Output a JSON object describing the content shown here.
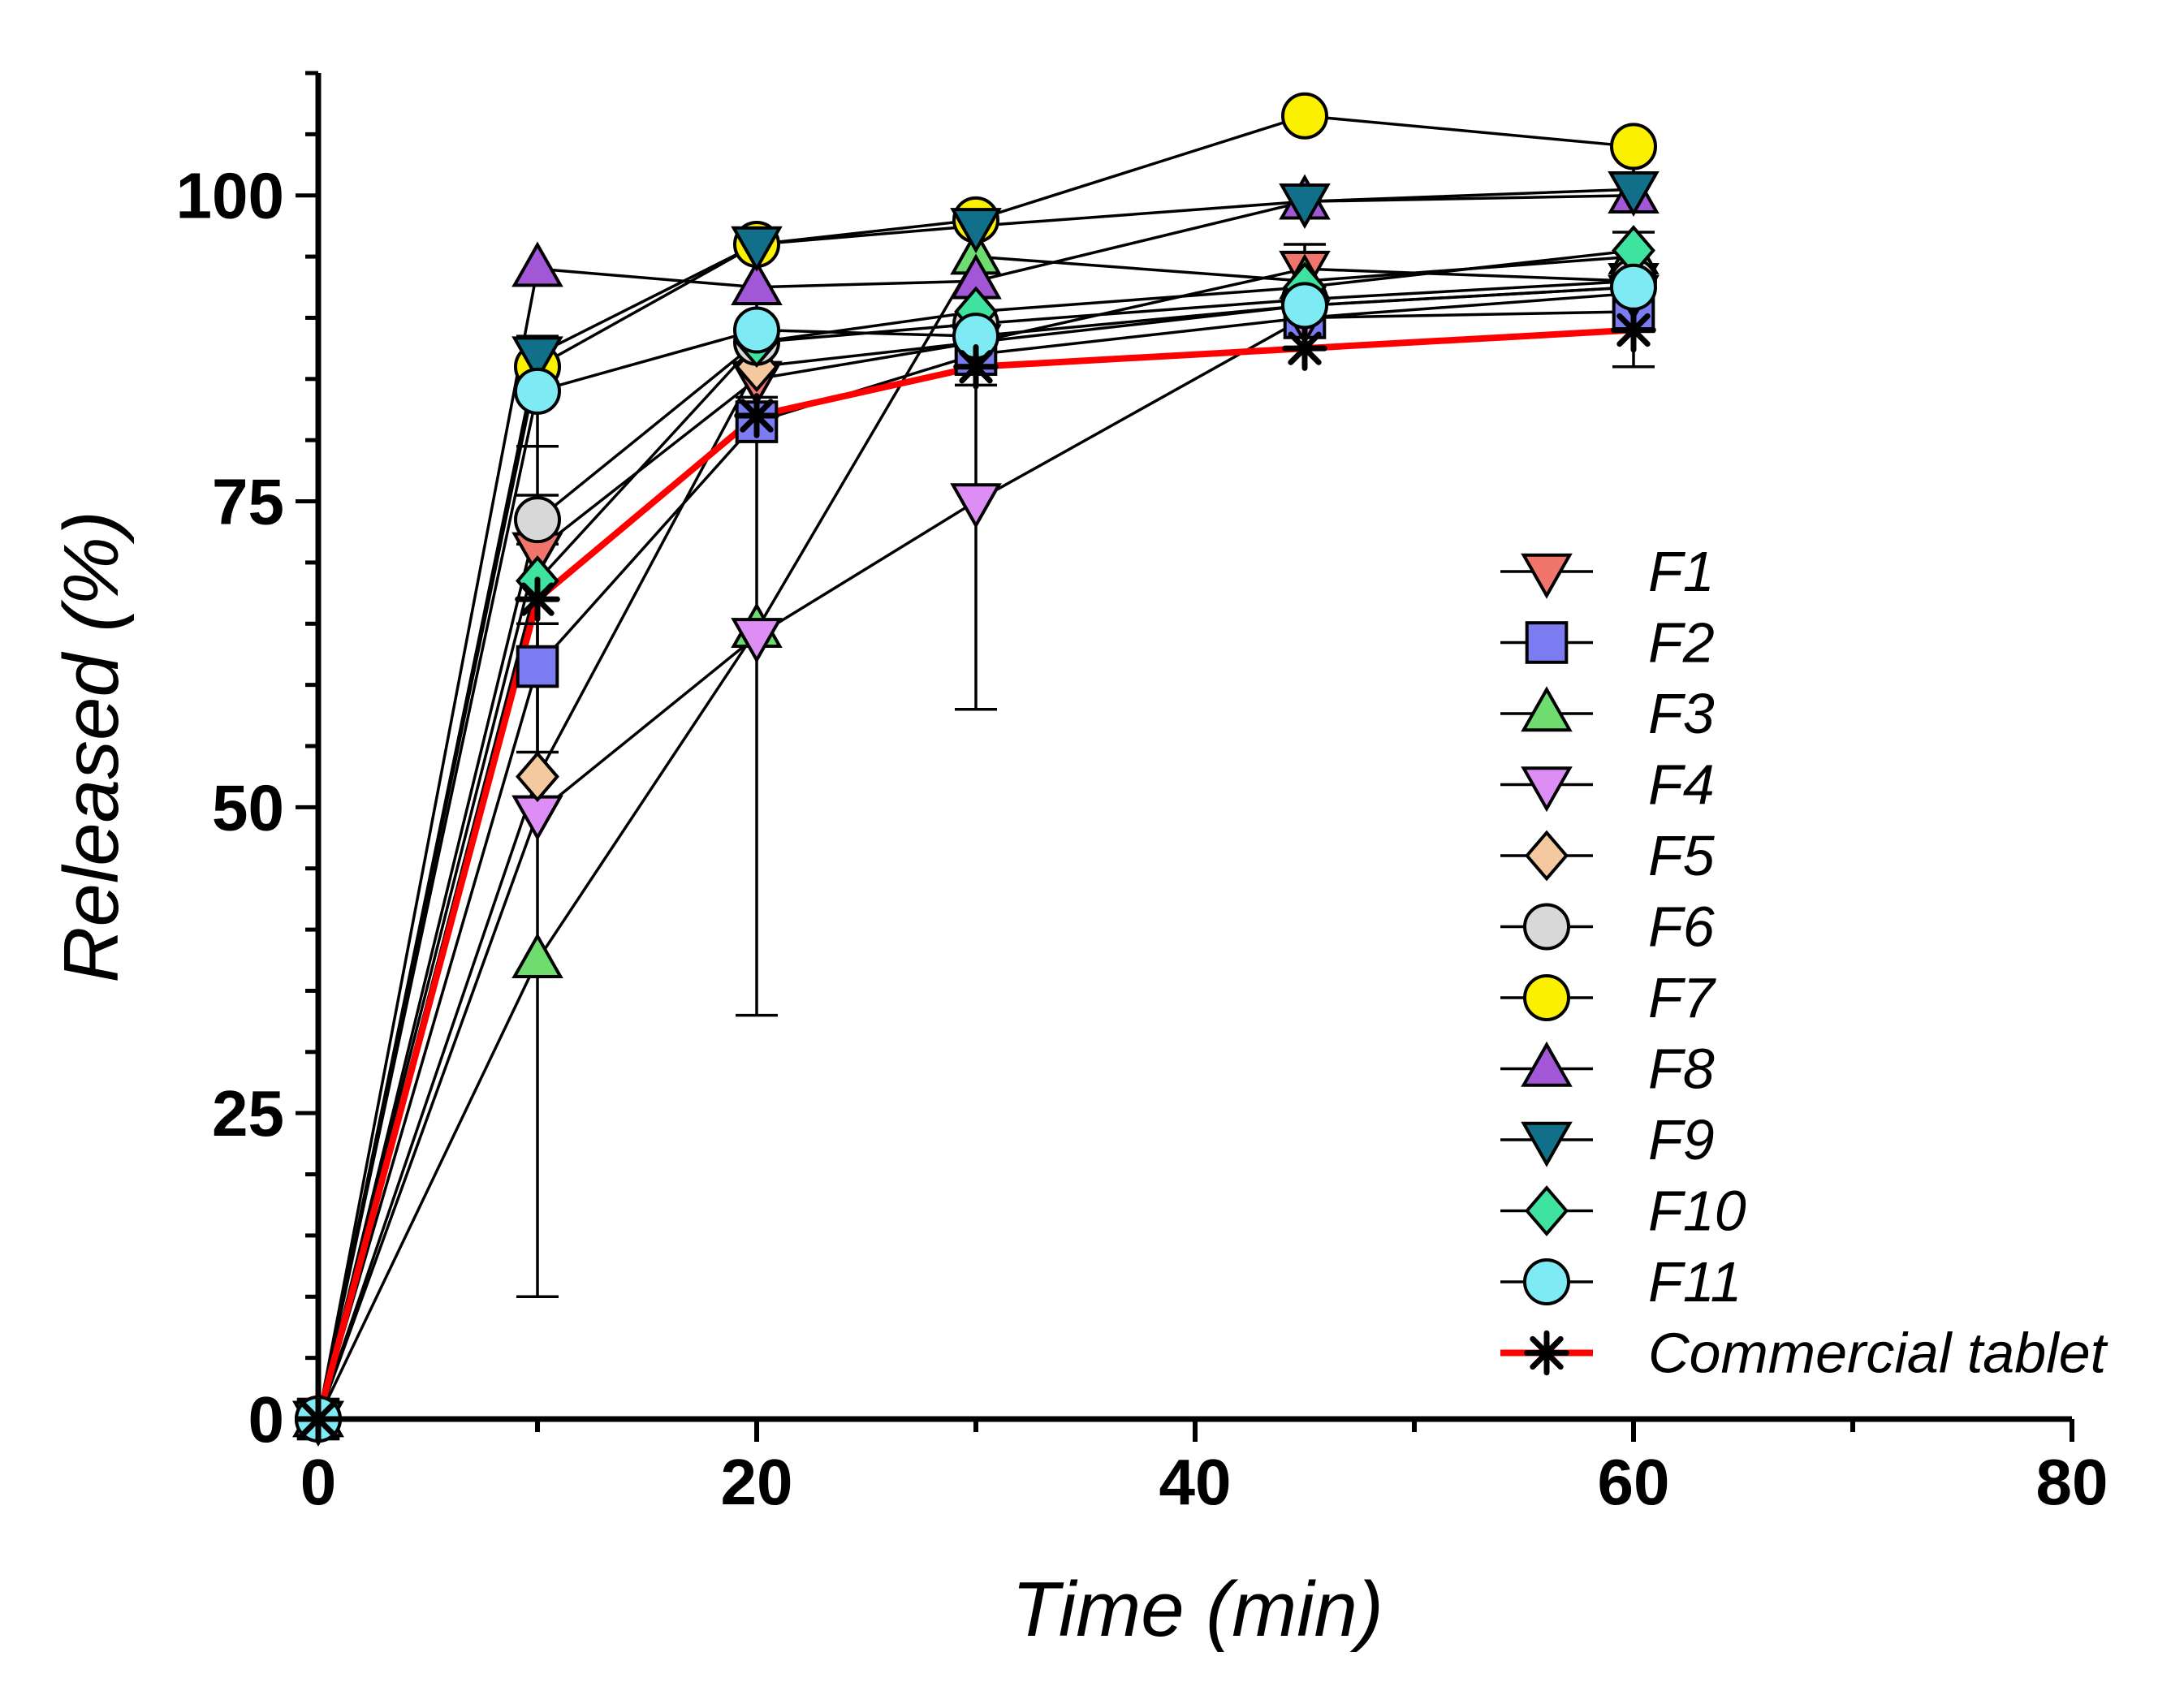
{
  "chart_data": {
    "type": "line",
    "title": "",
    "xlabel": "Time (min)",
    "ylabel": "Released (%)",
    "xlim": [
      0,
      80
    ],
    "ylim": [
      0,
      110
    ],
    "xticks": [
      0,
      20,
      40,
      60,
      80
    ],
    "yticks": [
      0,
      25,
      50,
      75,
      100
    ],
    "x": [
      0,
      10,
      20,
      30,
      45,
      60
    ],
    "grid": false,
    "legend_position": "bottom-right",
    "series": [
      {
        "name": "F1",
        "marker": "triangle-down",
        "color": "#f0766c",
        "values": [
          0,
          71,
          85,
          88,
          94,
          93
        ]
      },
      {
        "name": "F2",
        "marker": "square",
        "color": "#7b7bf2",
        "values": [
          0,
          61.5,
          81.5,
          87,
          90,
          90.5
        ]
      },
      {
        "name": "F3",
        "marker": "triangle-up",
        "color": "#6fdc6f",
        "values": [
          0,
          37.5,
          64.5,
          95,
          93,
          95
        ]
      },
      {
        "name": "F4",
        "marker": "triangle-down",
        "color": "#dd8ef5",
        "values": [
          0,
          49.5,
          64,
          75,
          90,
          92
        ]
      },
      {
        "name": "F5",
        "marker": "diamond",
        "color": "#f5c9a0",
        "values": [
          0,
          52.5,
          86,
          88,
          91,
          92.5
        ]
      },
      {
        "name": "F6",
        "marker": "circle",
        "color": "#d8d8d8",
        "values": [
          0,
          73.5,
          88,
          89.5,
          91.5,
          93
        ]
      },
      {
        "name": "F7",
        "marker": "circle",
        "color": "#fbf000",
        "values": [
          0,
          86,
          96,
          98,
          106.5,
          104
        ]
      },
      {
        "name": "F8",
        "marker": "triangle-up",
        "color": "#a157d6",
        "values": [
          0,
          94,
          92.5,
          93,
          99.5,
          100
        ]
      },
      {
        "name": "F9",
        "marker": "triangle-down",
        "color": "#116f8a",
        "values": [
          0,
          87,
          96,
          97.5,
          99.5,
          100.5
        ]
      },
      {
        "name": "F10",
        "marker": "diamond",
        "color": "#3fe3a0",
        "values": [
          0,
          68.5,
          88,
          90.5,
          92.5,
          95.5
        ]
      },
      {
        "name": "F11",
        "marker": "circle",
        "color": "#7eeaf3",
        "values": [
          0,
          84,
          89,
          88.5,
          91,
          92.5
        ]
      },
      {
        "name": "Commercial tablet",
        "marker": "asterisk",
        "color": "#000000",
        "line_color": "#ff0000",
        "values": [
          0,
          67,
          82,
          86,
          87.5,
          89
        ]
      }
    ],
    "error_bars": [
      {
        "x": 10,
        "y": 37.5,
        "err": 27.5
      },
      {
        "x": 10,
        "y": 67,
        "err": 12.5
      },
      {
        "x": 10,
        "y": 73.5,
        "err": 2
      },
      {
        "x": 10,
        "y": 84,
        "err": 4.5
      },
      {
        "x": 20,
        "y": 64.5,
        "err": 31.5
      },
      {
        "x": 20,
        "y": 82,
        "err": 1.5
      },
      {
        "x": 30,
        "y": 75,
        "err": 17
      },
      {
        "x": 30,
        "y": 86,
        "err": 1.5
      },
      {
        "x": 45,
        "y": 94,
        "err": 2
      },
      {
        "x": 60,
        "y": 89,
        "err": 3
      },
      {
        "x": 60,
        "y": 95,
        "err": 2
      }
    ]
  }
}
